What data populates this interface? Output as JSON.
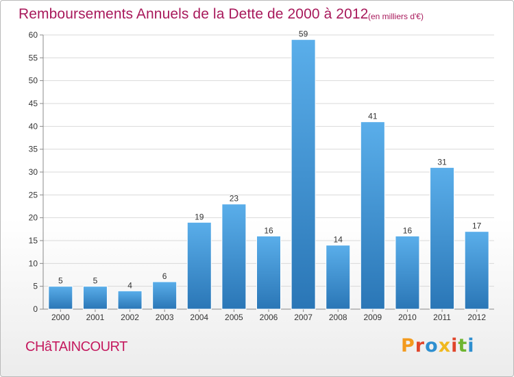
{
  "header": {
    "title": "Remboursements Annuels de la Dette de 2000 à 2012",
    "subtitle": "(en milliers d'€)"
  },
  "footer": {
    "commune": "CHâTAINCOURT",
    "logo": "Proxiti"
  },
  "colors": {
    "bar_light": "#5aaeea",
    "bar_dark": "#2a76b6",
    "title": "#a8195b",
    "logo": [
      "#f39a1e",
      "#e0452b",
      "#2e8fd0",
      "#f0b81e",
      "#e0452b",
      "#6fb531",
      "#2e8fd0"
    ]
  },
  "chart_data": {
    "type": "bar",
    "categories": [
      "2000",
      "2001",
      "2002",
      "2003",
      "2004",
      "2005",
      "2006",
      "2007",
      "2008",
      "2009",
      "2010",
      "2011",
      "2012"
    ],
    "values": [
      5,
      5,
      4,
      6,
      19,
      23,
      16,
      59,
      14,
      41,
      16,
      31,
      17
    ],
    "ylim": [
      0,
      60
    ],
    "yticks": [
      0,
      5,
      10,
      15,
      20,
      25,
      30,
      35,
      40,
      45,
      50,
      55,
      60
    ],
    "grid": true,
    "legend": "none"
  }
}
